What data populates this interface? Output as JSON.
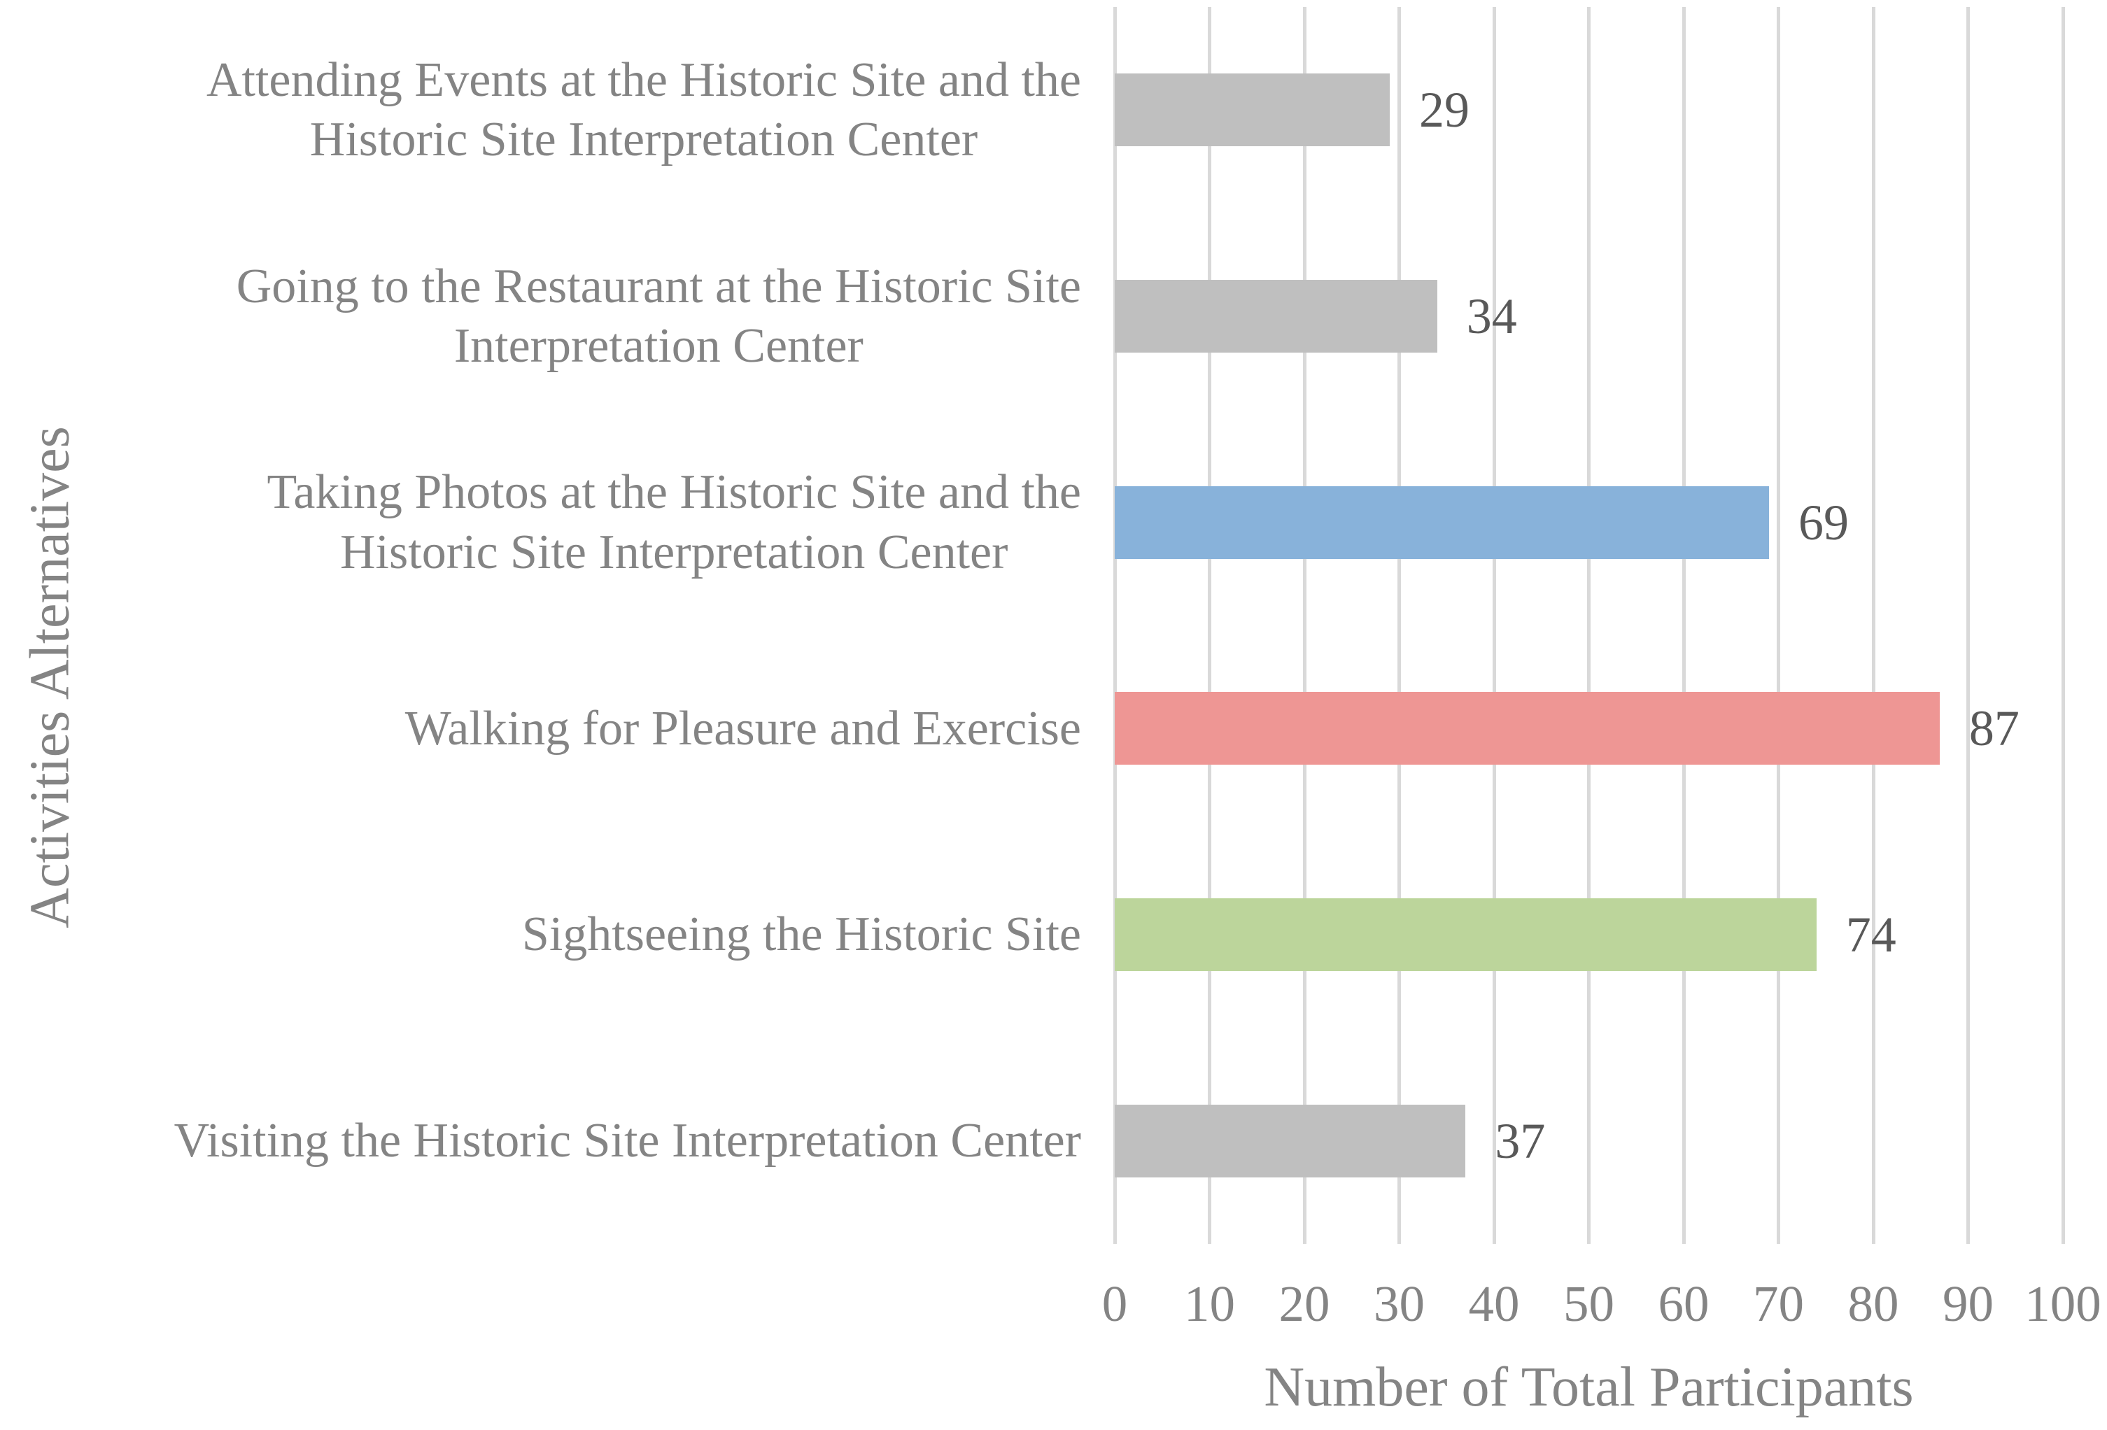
{
  "chart_data": {
    "type": "bar",
    "orientation": "horizontal",
    "title": "",
    "xlabel": "Number of Total Participants",
    "ylabel": "Activities Alternatives",
    "categories": [
      "Attending Events at the Historic Site and the\nHistoric Site Interpretation Center",
      "Going to the Restaurant at the Historic Site\nInterpretation Center",
      "Taking Photos at the Historic Site and the\nHistoric Site Interpretation Center",
      "Walking for Pleasure and Exercise",
      "Sightseeing the Historic Site",
      "Visiting the Historic Site Interpretation Center"
    ],
    "values": [
      29,
      34,
      69,
      87,
      74,
      37
    ],
    "bar_colors": [
      "#BFBFBF",
      "#BFBFBF",
      "#88B2DA",
      "#EE9694",
      "#BCD59B",
      "#BFBFBF"
    ],
    "xlim": [
      0,
      100
    ],
    "xticks": [
      0,
      10,
      20,
      30,
      40,
      50,
      60,
      70,
      80,
      90,
      100
    ],
    "grid": "vertical",
    "gridline_color": "#D9D9D9",
    "category_label_color": "#848484",
    "value_label_color": "#595959",
    "axis_title_color": "#848484",
    "background": "#FFFFFF",
    "legend": "none"
  }
}
